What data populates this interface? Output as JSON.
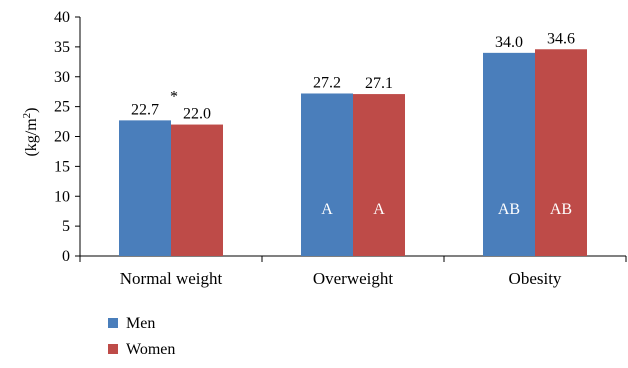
{
  "chart_data": {
    "type": "bar",
    "categories": [
      "Normal weight",
      "Overweight",
      "Obesity"
    ],
    "series": [
      {
        "name": "Men",
        "color": "#4a7ebb",
        "values": [
          22.7,
          27.2,
          34.0
        ],
        "labels": [
          "22.7",
          "27.2",
          "34.0"
        ],
        "inner_labels": [
          "",
          "A",
          "AB"
        ]
      },
      {
        "name": "Women",
        "color": "#be4b48",
        "values": [
          22.0,
          27.1,
          34.6
        ],
        "labels": [
          "22.0",
          "27.1",
          "34.6"
        ],
        "inner_labels": [
          "",
          "A",
          "AB"
        ]
      }
    ],
    "annotations": [
      {
        "category": "Normal weight",
        "text": "*"
      }
    ],
    "ylabel": "(kg/m2)",
    "ylabel_base": "(kg/m",
    "ylabel_sup": "2",
    "ylabel_close": ")",
    "ylim": [
      0,
      40
    ],
    "yticks": [
      0,
      5,
      10,
      15,
      20,
      25,
      30,
      35,
      40
    ],
    "grid": false,
    "legend_position": "bottom-left"
  }
}
